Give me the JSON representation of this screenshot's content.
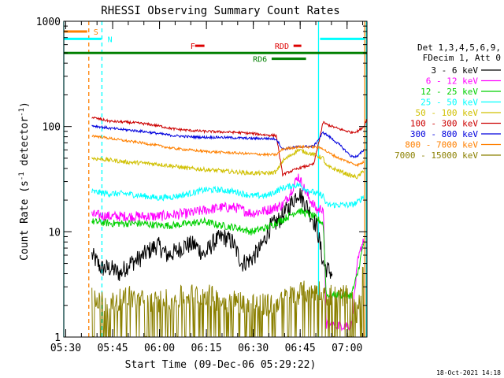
{
  "chart_data": {
    "type": "line",
    "title": "RHESSI Observing Summary Count Rates",
    "xlabel": "Start Time (09-Dec-06 05:29:22)",
    "ylabel": "Count Rate (s⁻¹ detector⁻¹)",
    "ylabel_parts": {
      "main": "Count Rate (s",
      "exp1": "-1",
      "mid": " detector",
      "exp2": "-1",
      "close": ")"
    },
    "footer": "18-Oct-2021 14:18",
    "yscale": "log",
    "ylim": [
      1,
      1000
    ],
    "xlim_minutes": [
      0,
      97
    ],
    "x_ticks": [
      {
        "label": "05:30",
        "minutes": 0.63
      },
      {
        "label": "05:45",
        "minutes": 15.63
      },
      {
        "label": "06:00",
        "minutes": 30.63
      },
      {
        "label": "06:15",
        "minutes": 45.63
      },
      {
        "label": "06:30",
        "minutes": 60.63
      },
      {
        "label": "06:45",
        "minutes": 75.63
      },
      {
        "label": "07:00",
        "minutes": 90.63
      }
    ],
    "y_ticks": [
      {
        "label": "1",
        "value": 1
      },
      {
        "label": "10",
        "value": 10
      },
      {
        "label": "100",
        "value": 100
      },
      {
        "label": "1000",
        "value": 1000
      }
    ],
    "legend_header": [
      "Det 1,3,4,5,6,9,",
      "FDecim 1, Att 0"
    ],
    "series": [
      {
        "name": "3 - 6 keV",
        "color": "#000000",
        "x": [
          9,
          12,
          15,
          18,
          21,
          24,
          27,
          30,
          33,
          36,
          39,
          42,
          45,
          48,
          51,
          54,
          57,
          60,
          63,
          66,
          69,
          72,
          75,
          78,
          81,
          83,
          84,
          86
        ],
        "y": [
          6,
          4.5,
          4.5,
          4,
          5,
          5.5,
          6.5,
          7.5,
          6,
          6.5,
          7.5,
          7.5,
          6,
          8,
          9,
          8,
          5,
          5.5,
          7,
          11,
          13,
          17,
          24,
          17,
          11,
          5,
          4.5,
          4
        ]
      },
      {
        "name": "6 - 12 keV",
        "color": "#ff00ff",
        "x": [
          9,
          15,
          20,
          25,
          30,
          35,
          40,
          45,
          50,
          55,
          60,
          65,
          70,
          72,
          75,
          78,
          81,
          83,
          84,
          92,
          94,
          96
        ],
        "y": [
          14.5,
          14,
          14,
          14,
          14,
          14.5,
          15,
          16,
          17,
          17,
          15,
          16,
          18,
          22,
          34,
          22,
          16,
          17,
          1.3,
          1.3,
          5,
          9
        ]
      },
      {
        "name": "12 - 25 keV",
        "color": "#00d000",
        "x": [
          9,
          15,
          20,
          25,
          30,
          35,
          40,
          45,
          50,
          55,
          60,
          65,
          70,
          75,
          80,
          83,
          84,
          92,
          94,
          96
        ],
        "y": [
          12.5,
          12,
          12,
          12,
          11.5,
          11.5,
          12,
          12.5,
          11.5,
          11,
          10,
          11,
          13,
          16,
          14,
          12,
          2.5,
          2.5,
          4,
          8
        ]
      },
      {
        "name": "25 - 50 keV",
        "color": "#00ffff",
        "x": [
          9,
          15,
          20,
          25,
          30,
          35,
          40,
          45,
          50,
          55,
          60,
          65,
          70,
          72,
          75,
          78,
          81,
          83,
          84,
          92,
          94,
          96
        ],
        "y": [
          24,
          23,
          23,
          22,
          21,
          21.5,
          23,
          25,
          25,
          24,
          22,
          22,
          26,
          27,
          28,
          25,
          23,
          22,
          18,
          18,
          19,
          22
        ]
      },
      {
        "name": "50 - 100 keV",
        "color": "#d0c000",
        "x": [
          9,
          15,
          20,
          25,
          30,
          35,
          40,
          45,
          50,
          55,
          60,
          65,
          68,
          70,
          75,
          80,
          83,
          84,
          88,
          92,
          94,
          96
        ],
        "y": [
          50,
          48,
          46,
          45,
          44,
          42,
          40,
          39,
          38,
          37,
          36,
          36,
          37,
          47,
          60,
          54,
          50,
          42,
          38,
          34,
          33,
          38
        ]
      },
      {
        "name": "100 - 300 keV",
        "color": "#cc0000",
        "x": [
          9,
          15,
          20,
          25,
          30,
          35,
          40,
          45,
          50,
          55,
          60,
          65,
          68,
          70,
          75,
          80,
          83,
          84,
          88,
          92,
          94,
          96,
          97
        ],
        "y": [
          122,
          112,
          110,
          107,
          102,
          95,
          92,
          90,
          89,
          88,
          86,
          83,
          82,
          35,
          40,
          44,
          110,
          105,
          95,
          88,
          90,
          100,
          120
        ]
      },
      {
        "name": "300 - 800 keV",
        "color": "#0000dd",
        "x": [
          9,
          15,
          20,
          25,
          30,
          35,
          40,
          45,
          50,
          55,
          60,
          65,
          68,
          70,
          75,
          80,
          83,
          84,
          88,
          92,
          94,
          96
        ],
        "y": [
          102,
          96,
          93,
          90,
          86,
          82,
          80,
          79,
          79,
          78,
          77,
          77,
          76,
          61,
          64,
          65,
          88,
          84,
          68,
          52,
          52,
          60
        ]
      },
      {
        "name": "800 - 7000 keV",
        "color": "#ff8000",
        "x": [
          9,
          15,
          20,
          25,
          30,
          35,
          40,
          45,
          50,
          55,
          60,
          65,
          68,
          70,
          75,
          80,
          83,
          84,
          88,
          92,
          94,
          96
        ],
        "y": [
          82,
          77,
          73,
          70,
          66,
          62,
          60,
          58,
          57,
          56,
          55,
          54,
          54,
          61,
          64,
          64,
          62,
          58,
          50,
          45,
          43,
          46
        ]
      },
      {
        "name": "7000 - 15000 keV",
        "color": "#8b8000",
        "x": [
          9,
          12,
          15,
          20,
          25,
          30,
          35,
          40,
          45,
          50,
          55,
          60,
          65,
          70,
          75,
          80,
          83,
          84,
          92,
          94,
          96
        ],
        "y": [
          2.5,
          2.2,
          2,
          2.5,
          2.2,
          2.2,
          2.3,
          2.5,
          2.6,
          2.2,
          2.2,
          2.1,
          2,
          2.3,
          2.6,
          2.8,
          2.8,
          2.5,
          2.5,
          1.6,
          4.5
        ]
      }
    ],
    "vertical_markers": [
      {
        "minutes": 0,
        "color": "#00ffff",
        "style": "solid"
      },
      {
        "minutes": 8,
        "color": "#ff8000",
        "style": "dashed"
      },
      {
        "minutes": 12.2,
        "color": "#00ffff",
        "style": "dashed"
      },
      {
        "minutes": 81.5,
        "color": "#00ffff",
        "style": "solid"
      },
      {
        "minutes": 96.3,
        "color": "#ff8000",
        "style": "solid"
      },
      {
        "minutes": 96.8,
        "color": "#00ffff",
        "style": "solid"
      }
    ],
    "flag_bars": [
      {
        "label": "S",
        "color": "#ff8000",
        "x0": 0,
        "x1": 7.5,
        "y": 800,
        "label_at": 9.5
      },
      {
        "label": "N",
        "color": "#00ffff",
        "x0": 0,
        "x1": 12,
        "y": 680,
        "label_at": 14
      },
      {
        "label": "",
        "color": "#00ffff",
        "x0": 82,
        "x1": 96.3,
        "y": 680,
        "label_at": null
      },
      {
        "label": "",
        "color": "#008000",
        "x0": 0,
        "x1": 97,
        "y": 500,
        "label_at": null
      },
      {
        "label": "F",
        "color": "#dd0000",
        "x0": 42,
        "x1": 45,
        "y": 585,
        "label_at": 40.5
      },
      {
        "label": "RDD",
        "color": "#dd0000",
        "x0": 73.5,
        "x1": 76,
        "y": 585,
        "label_at": 67.5
      },
      {
        "label": "RD6",
        "color": "#008000",
        "x0": 66.5,
        "x1": 77.5,
        "y": 440,
        "label_at": 60.5
      }
    ]
  }
}
